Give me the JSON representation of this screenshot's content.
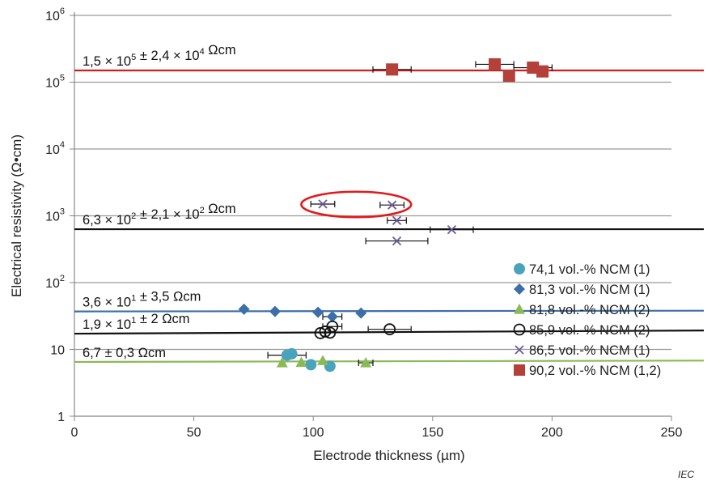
{
  "chart_data": {
    "type": "scatter",
    "title": "",
    "xlabel": "Electrode thickness (µm)",
    "ylabel": "Electrical resistivity (Ω•cm)",
    "xlim": [
      0,
      250
    ],
    "ylim": [
      1,
      1000000
    ],
    "y_scale": "log",
    "x_ticks": [
      "0",
      "50",
      "100",
      "150",
      "200",
      "250"
    ],
    "y_ticks": [
      {
        "mantissa": "1",
        "exp": ""
      },
      {
        "mantissa": "10",
        "exp": ""
      },
      {
        "mantissa": "10",
        "exp": "2"
      },
      {
        "mantissa": "10",
        "exp": "3"
      },
      {
        "mantissa": "10",
        "exp": "4"
      },
      {
        "mantissa": "10",
        "exp": "5"
      },
      {
        "mantissa": "10",
        "exp": "6"
      }
    ],
    "grid": "horizontal",
    "legend_position": "bottom-right",
    "series": [
      {
        "name": "74,1 vol.-% NCM (1)",
        "marker": "circle",
        "color": "#4aa3bd",
        "points": [
          {
            "x": 89,
            "y": 8.2
          },
          {
            "x": 91,
            "y": 8.6
          },
          {
            "x": 99,
            "y": 5.9
          },
          {
            "x": 107,
            "y": 5.6
          }
        ],
        "fit": {
          "x_start": 86,
          "x_end": 122,
          "y_start": 6.5,
          "y_end": 6.6,
          "label": "6,7 ± 0,3 Ωcm",
          "color": "#8bb957"
        }
      },
      {
        "name": "81,3 vol.-% NCM (1)",
        "marker": "diamond",
        "color": "#3c6fa8",
        "points": [
          {
            "x": 71,
            "y": 40
          },
          {
            "x": 84,
            "y": 37
          },
          {
            "x": 102,
            "y": 36
          },
          {
            "x": 108,
            "y": 31
          },
          {
            "x": 120,
            "y": 35
          }
        ]
      },
      {
        "name": "81,8 vol.-% NCM (2)",
        "marker": "triangle",
        "color": "#8bb957",
        "points": [
          {
            "x": 87,
            "y": 6.3
          },
          {
            "x": 95,
            "y": 6.4
          },
          {
            "x": 104,
            "y": 6.8
          },
          {
            "x": 122,
            "y": 6.3
          }
        ]
      },
      {
        "name": "85,9 vol.-% NCM (2)",
        "marker": "open-circle",
        "color": "#111111",
        "points": [
          {
            "x": 103,
            "y": 17.5
          },
          {
            "x": 105,
            "y": 18.5
          },
          {
            "x": 107,
            "y": 17.8
          },
          {
            "x": 108,
            "y": 22
          },
          {
            "x": 132,
            "y": 20
          }
        ]
      },
      {
        "name": "86,5 vol.-% NCM (1)",
        "marker": "x",
        "color": "#6b5b95",
        "points": [
          {
            "x": 104,
            "y": 1500
          },
          {
            "x": 133,
            "y": 1450
          },
          {
            "x": 135,
            "y": 850
          },
          {
            "x": 135,
            "y": 420
          },
          {
            "x": 158,
            "y": 620
          }
        ]
      },
      {
        "name": "90,2 vol.-% NCM (1,2)",
        "marker": "square",
        "color": "#b4403a",
        "points": [
          {
            "x": 133,
            "y": 155000
          },
          {
            "x": 176,
            "y": 185000
          },
          {
            "x": 182,
            "y": 125000
          },
          {
            "x": 192,
            "y": 165000
          },
          {
            "x": 196,
            "y": 145000
          }
        ]
      }
    ],
    "fit_lines": [
      {
        "label": "1,5 × 10⁵ ± 2,4 × 10⁴ Ωcm",
        "color": "#cc1f1f",
        "x_start": 0,
        "x_end": 265,
        "y_start": 150000,
        "y_end": 150000
      },
      {
        "label": "6,3 × 10² ± 2,1 × 10² Ωcm",
        "color": "#111111",
        "x_start": 0,
        "x_end": 265,
        "y_start": 630,
        "y_end": 630
      },
      {
        "label": "3,6 × 10¹ ± 3,5 Ωcm",
        "color": "#3c6fa8",
        "x_start": 0,
        "x_end": 265,
        "y_start": 37,
        "y_end": 38
      },
      {
        "label": "1,9 × 10¹ ± 2 Ωcm",
        "color": "#111111",
        "x_start": 0,
        "x_end": 265,
        "y_start": 17.2,
        "y_end": 19.2
      },
      {
        "label": "6,7 ± 0,3 Ωcm",
        "color": "#8bb957",
        "x_start": 0,
        "x_end": 265,
        "y_start": 6.5,
        "y_end": 6.8
      }
    ],
    "error_bars": [
      {
        "x": 133,
        "y": 155000,
        "err": 8
      },
      {
        "x": 176,
        "y": 185000,
        "err": 8
      },
      {
        "x": 192,
        "y": 165000,
        "err": 8
      },
      {
        "x": 104,
        "y": 1500,
        "err": 5
      },
      {
        "x": 133,
        "y": 1450,
        "err": 5
      },
      {
        "x": 135,
        "y": 850,
        "err": 4
      },
      {
        "x": 158,
        "y": 620,
        "err": 9
      },
      {
        "x": 135,
        "y": 420,
        "err": 13
      },
      {
        "x": 108,
        "y": 31,
        "err": 4
      },
      {
        "x": 108,
        "y": 22,
        "err": 4
      },
      {
        "x": 132,
        "y": 20,
        "err": 9
      },
      {
        "x": 89,
        "y": 8.2,
        "err": 8
      },
      {
        "x": 122,
        "y": 6.3,
        "err": 3
      }
    ],
    "annotations": [
      {
        "type": "ellipse",
        "color": "#e11b1b",
        "x_center": 118,
        "y_center": 1480,
        "x_radius": 23,
        "y_ratio": 1.55
      }
    ]
  },
  "watermark": "IEC"
}
